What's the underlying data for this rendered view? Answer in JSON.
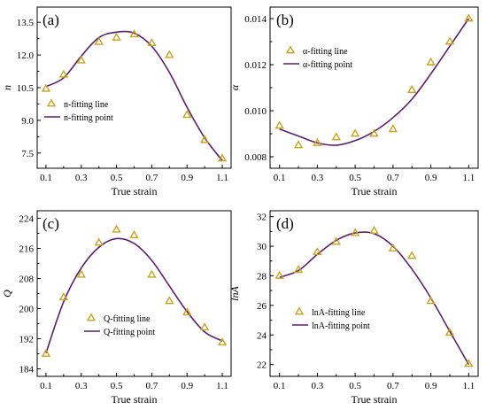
{
  "colors": {
    "curve": "#5b1f6b",
    "marker": "#c9a31a"
  },
  "chart_data": [
    {
      "type": "scatter",
      "panel_label": "(a)",
      "xlabel": "True strain",
      "ylabel": "n",
      "xlim": [
        0.05,
        1.15
      ],
      "ylim": [
        6.8,
        14.2
      ],
      "x_ticks": [
        0.1,
        0.2,
        0.3,
        0.4,
        0.5,
        0.6,
        0.7,
        0.8,
        0.9,
        1.0,
        1.1
      ],
      "x_tick_labels": [
        "0.1",
        "0.3",
        "0.5",
        "0.7",
        "0.9",
        "1.1"
      ],
      "y_ticks": [
        7.5,
        9.0,
        10.5,
        12.0,
        13.5
      ],
      "y_tick_labels": [
        "7.5",
        "9.0",
        "10.5",
        "12.0",
        "13.5"
      ],
      "legend": {
        "position": "middle-left",
        "marker_label": "n-fitting line",
        "line_label": "n-fitting point"
      },
      "x": [
        0.1,
        0.2,
        0.3,
        0.4,
        0.5,
        0.6,
        0.7,
        0.8,
        0.9,
        1.0,
        1.1
      ],
      "points": [
        10.45,
        11.1,
        11.75,
        12.6,
        12.8,
        12.95,
        12.55,
        12.0,
        9.25,
        8.1,
        7.25
      ],
      "fit": [
        10.55,
        10.95,
        11.95,
        12.8,
        13.05,
        13.0,
        12.4,
        11.2,
        9.6,
        8.2,
        7.15
      ]
    },
    {
      "type": "scatter",
      "panel_label": "(b)",
      "xlabel": "True strain",
      "ylabel": "α",
      "xlim": [
        0.05,
        1.15
      ],
      "ylim": [
        0.0075,
        0.0145
      ],
      "x_ticks": [
        0.1,
        0.2,
        0.3,
        0.4,
        0.5,
        0.6,
        0.7,
        0.8,
        0.9,
        1.0,
        1.1
      ],
      "x_tick_labels": [
        "0.1",
        "0.3",
        "0.5",
        "0.7",
        "0.9",
        "1.1"
      ],
      "y_ticks": [
        0.008,
        0.01,
        0.012,
        0.014
      ],
      "y_tick_labels": [
        "0.008",
        "0.010",
        "0.012",
        "0.014"
      ],
      "legend": {
        "position": "top-left",
        "marker_label": "α-fitting line",
        "line_label": "α-fitting point"
      },
      "x": [
        0.1,
        0.2,
        0.3,
        0.4,
        0.5,
        0.6,
        0.7,
        0.8,
        0.9,
        1.0,
        1.1
      ],
      "points": [
        0.00935,
        0.0085,
        0.0086,
        0.00885,
        0.009,
        0.009,
        0.0092,
        0.0109,
        0.0121,
        0.013,
        0.014
      ],
      "fit": [
        0.0092,
        0.0089,
        0.0086,
        0.0085,
        0.0087,
        0.0091,
        0.0097,
        0.0105,
        0.0116,
        0.0128,
        0.014
      ]
    },
    {
      "type": "scatter",
      "panel_label": "(c)",
      "xlabel": "True strain",
      "ylabel": "Q",
      "xlim": [
        0.05,
        1.15
      ],
      "ylim": [
        182,
        226
      ],
      "x_ticks": [
        0.1,
        0.2,
        0.3,
        0.4,
        0.5,
        0.6,
        0.7,
        0.8,
        0.9,
        1.0,
        1.1
      ],
      "x_tick_labels": [
        "0.1",
        "0.3",
        "0.5",
        "0.7",
        "0.9",
        "1.1"
      ],
      "y_ticks": [
        184,
        192,
        200,
        208,
        216,
        224
      ],
      "y_tick_labels": [
        "184",
        "192",
        "200",
        "208",
        "216",
        "224"
      ],
      "legend": {
        "position": "bottom-center",
        "marker_label": "Q-fitting line",
        "line_label": "Q-fitting point"
      },
      "x": [
        0.1,
        0.2,
        0.3,
        0.4,
        0.5,
        0.6,
        0.7,
        0.8,
        0.9,
        1.0,
        1.1
      ],
      "points": [
        188,
        203,
        209,
        217.5,
        221,
        219.5,
        209,
        202,
        199,
        195,
        191
      ],
      "fit": [
        188.2,
        201.8,
        210.8,
        216.3,
        218.6,
        217.3,
        212.8,
        206.0,
        199.2,
        193.8,
        191.4
      ]
    },
    {
      "type": "scatter",
      "panel_label": "(d)",
      "xlabel": "True strain",
      "ylabel": "lnA",
      "xlim": [
        0.05,
        1.15
      ],
      "ylim": [
        21.2,
        32.4
      ],
      "x_ticks": [
        0.1,
        0.2,
        0.3,
        0.4,
        0.5,
        0.6,
        0.7,
        0.8,
        0.9,
        1.0,
        1.1
      ],
      "x_tick_labels": [
        "0.1",
        "0.3",
        "0.5",
        "0.7",
        "0.9",
        "1.1"
      ],
      "y_ticks": [
        22,
        24,
        26,
        28,
        30,
        32
      ],
      "y_tick_labels": [
        "22",
        "24",
        "26",
        "28",
        "30",
        "32"
      ],
      "legend": {
        "position": "bottom-left",
        "marker_label": "lnA-fitting line",
        "line_label": "lnA-fitting point"
      },
      "x": [
        0.1,
        0.2,
        0.3,
        0.4,
        0.5,
        0.6,
        0.7,
        0.8,
        0.9,
        1.0,
        1.1
      ],
      "points": [
        28.0,
        28.4,
        29.6,
        30.3,
        30.9,
        31.05,
        29.85,
        29.35,
        26.3,
        24.15,
        22.05
      ],
      "fit": [
        27.9,
        28.35,
        29.45,
        30.4,
        30.9,
        30.85,
        30.0,
        28.45,
        26.5,
        24.25,
        22.0
      ]
    }
  ]
}
